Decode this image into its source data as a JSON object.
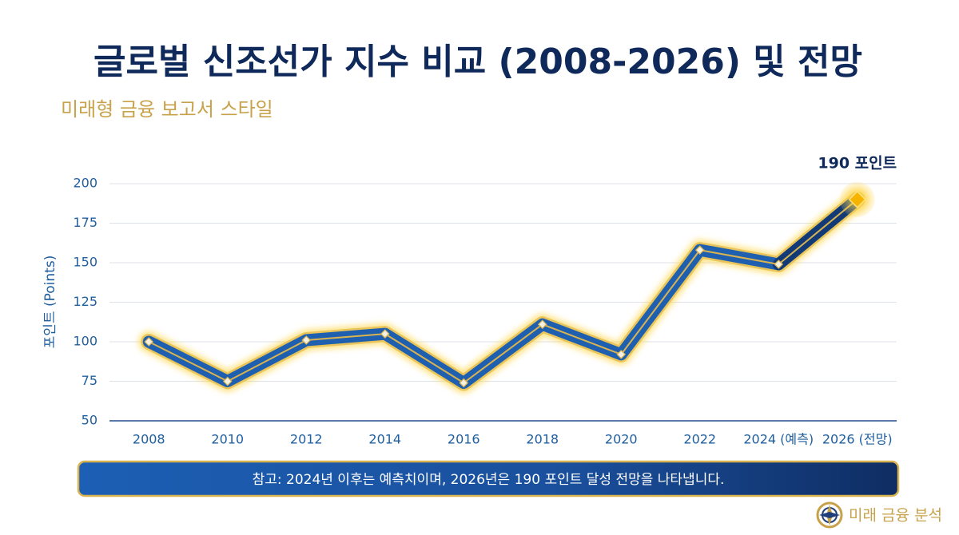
{
  "chart_data": {
    "type": "line",
    "title": "글로벌 신조선가 지수 비교 (2008-2026) 및 전망",
    "subtitle": "미래형 금융 보고서 스타일",
    "y_label": "포인트 (Points)",
    "categories": [
      "2008",
      "2010",
      "2012",
      "2014",
      "2016",
      "2018",
      "2020",
      "2022",
      "2024 (예측)",
      "2026 (전망)"
    ],
    "values": [
      100,
      75,
      101,
      105,
      74,
      111,
      92,
      158,
      149,
      190
    ],
    "color": "#1f5fb0",
    "ylim": [
      50,
      200
    ],
    "yticks": [
      50,
      75,
      100,
      125,
      150,
      175,
      200
    ],
    "grid": true,
    "annotation": "190 포인트",
    "note": "참고: 2024년 이후는 예측치이며, 2026년은 190 포인트 달성 전망을 나타냅니다.",
    "brand": "미래 금융 분석"
  }
}
